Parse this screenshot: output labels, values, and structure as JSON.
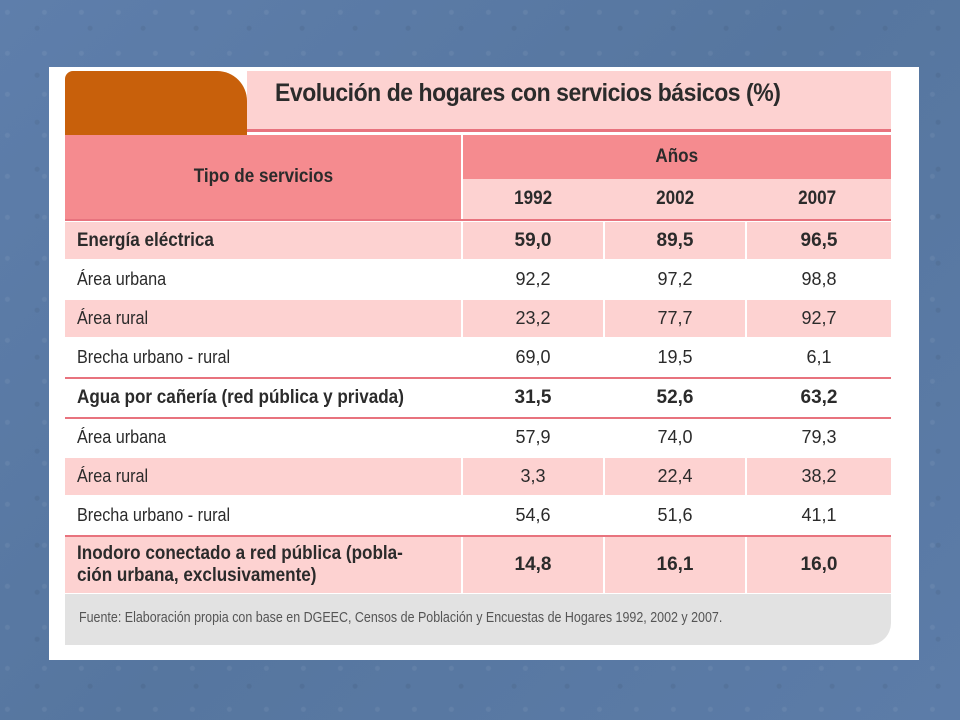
{
  "title": "Evolución de hogares con servicios básicos (%)",
  "header": {
    "service_label": "Tipo de servicios",
    "years_label": "Años",
    "years": [
      "1992",
      "2002",
      "2007"
    ]
  },
  "rows": [
    {
      "label": "Energía eléctrica",
      "values": [
        "59,0",
        "89,5",
        "96,5"
      ]
    },
    {
      "label": "Área urbana",
      "values": [
        "92,2",
        "97,2",
        "98,8"
      ]
    },
    {
      "label": "Área rural",
      "values": [
        "23,2",
        "77,7",
        "92,7"
      ]
    },
    {
      "label": "Brecha urbano - rural",
      "values": [
        "69,0",
        "19,5",
        "6,1"
      ]
    },
    {
      "label": "Agua por cañería (red pública y privada)",
      "values": [
        "31,5",
        "52,6",
        "63,2"
      ]
    },
    {
      "label": "Área urbana",
      "values": [
        "57,9",
        "74,0",
        "79,3"
      ]
    },
    {
      "label": "Área rural",
      "values": [
        "3,3",
        "22,4",
        "38,2"
      ]
    },
    {
      "label": "Brecha urbano - rural",
      "values": [
        "54,6",
        "51,6",
        "41,1"
      ]
    },
    {
      "label_line1": "Inodoro conectado a red pública (pobla-",
      "label_line2": "ción urbana, exclusivamente)",
      "values": [
        "14,8",
        "16,1",
        "16,0"
      ]
    }
  ],
  "source": "Fuente: Elaboración propia con base en DGEEC, Censos de Población y Encuestas de Hogares 1992, 2002 y 2007."
}
